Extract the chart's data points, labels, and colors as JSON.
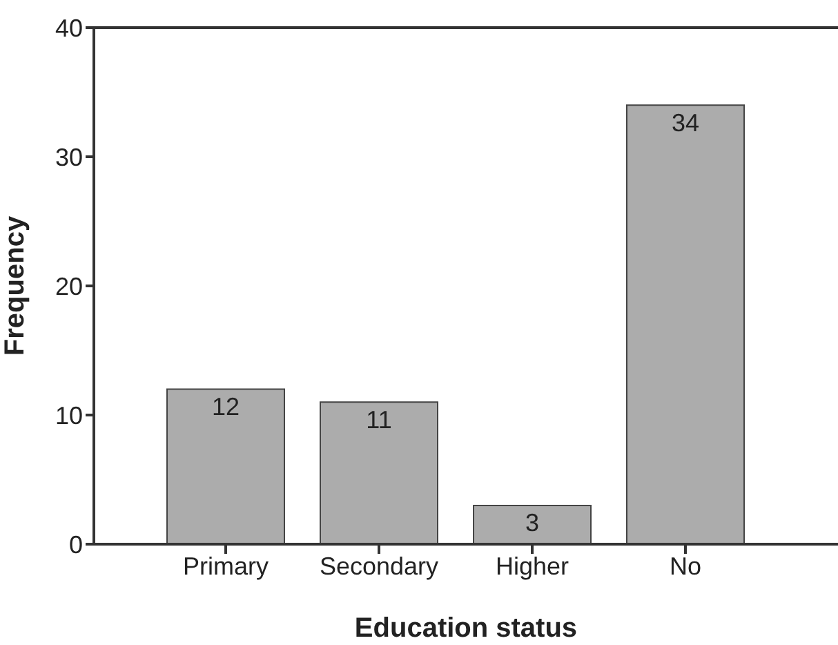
{
  "chart_data": {
    "type": "bar",
    "xlabel": "Education status",
    "ylabel": "Frequency",
    "categories": [
      "Primary",
      "Secondary",
      "Higher",
      "No"
    ],
    "values": [
      12,
      11,
      3,
      34
    ],
    "color": "#acacac",
    "ylim": [
      0,
      40
    ],
    "yticks": [
      0,
      10,
      20,
      30,
      40
    ],
    "data_labels": true
  }
}
